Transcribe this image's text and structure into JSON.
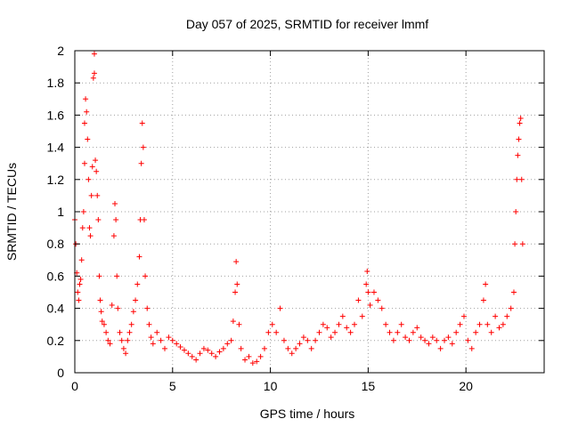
{
  "chart_data": {
    "type": "scatter",
    "title": "Day 057 of 2025, SRMTID for receiver lmmf",
    "xlabel": "GPS time / hours",
    "ylabel": "SRMTID / TECUs",
    "xlim": [
      0,
      24
    ],
    "ylim": [
      0,
      2
    ],
    "grid": true,
    "marker": "+",
    "color": "#ff0000",
    "x_ticks": [
      0,
      5,
      10,
      15,
      20
    ],
    "x_tick_labels": [
      "0",
      "5",
      "10",
      "15",
      "20"
    ],
    "y_ticks": [
      0,
      0.2,
      0.4,
      0.6,
      0.8,
      1,
      1.2,
      1.4,
      1.6,
      1.8,
      2
    ],
    "y_tick_labels": [
      "0",
      "0.2",
      "0.4",
      "0.6",
      "0.8",
      "1",
      "1.2",
      "1.4",
      "1.6",
      "1.8",
      "2"
    ],
    "series": [
      {
        "name": "SRMTID",
        "points": [
          [
            0.0,
            0.95
          ],
          [
            0.05,
            0.8
          ],
          [
            0.1,
            0.62
          ],
          [
            0.15,
            0.5
          ],
          [
            0.2,
            0.45
          ],
          [
            0.25,
            0.55
          ],
          [
            0.3,
            0.58
          ],
          [
            0.35,
            0.7
          ],
          [
            0.4,
            0.9
          ],
          [
            0.45,
            1.0
          ],
          [
            0.5,
            1.3
          ],
          [
            0.5,
            1.55
          ],
          [
            0.55,
            1.7
          ],
          [
            0.6,
            1.62
          ],
          [
            0.65,
            1.45
          ],
          [
            0.7,
            1.2
          ],
          [
            0.75,
            0.9
          ],
          [
            0.8,
            0.85
          ],
          [
            0.85,
            1.1
          ],
          [
            0.9,
            1.28
          ],
          [
            0.95,
            1.83
          ],
          [
            1.0,
            1.98
          ],
          [
            1.0,
            1.86
          ],
          [
            1.05,
            1.32
          ],
          [
            1.1,
            1.25
          ],
          [
            1.15,
            1.1
          ],
          [
            1.2,
            0.95
          ],
          [
            1.25,
            0.6
          ],
          [
            1.3,
            0.45
          ],
          [
            1.35,
            0.38
          ],
          [
            1.4,
            0.32
          ],
          [
            1.5,
            0.3
          ],
          [
            1.6,
            0.25
          ],
          [
            1.7,
            0.2
          ],
          [
            1.8,
            0.18
          ],
          [
            1.9,
            0.42
          ],
          [
            2.0,
            0.85
          ],
          [
            2.05,
            1.05
          ],
          [
            2.1,
            0.95
          ],
          [
            2.15,
            0.6
          ],
          [
            2.2,
            0.4
          ],
          [
            2.3,
            0.25
          ],
          [
            2.4,
            0.2
          ],
          [
            2.5,
            0.15
          ],
          [
            2.6,
            0.12
          ],
          [
            2.7,
            0.2
          ],
          [
            2.8,
            0.25
          ],
          [
            2.9,
            0.3
          ],
          [
            3.0,
            0.38
          ],
          [
            3.1,
            0.45
          ],
          [
            3.2,
            0.55
          ],
          [
            3.3,
            0.72
          ],
          [
            3.35,
            0.95
          ],
          [
            3.4,
            1.3
          ],
          [
            3.45,
            1.55
          ],
          [
            3.5,
            1.4
          ],
          [
            3.55,
            0.95
          ],
          [
            3.6,
            0.6
          ],
          [
            3.7,
            0.4
          ],
          [
            3.8,
            0.3
          ],
          [
            3.9,
            0.22
          ],
          [
            4.0,
            0.18
          ],
          [
            4.2,
            0.25
          ],
          [
            4.4,
            0.2
          ],
          [
            4.6,
            0.15
          ],
          [
            4.8,
            0.22
          ],
          [
            5.0,
            0.2
          ],
          [
            5.2,
            0.18
          ],
          [
            5.4,
            0.16
          ],
          [
            5.6,
            0.14
          ],
          [
            5.8,
            0.12
          ],
          [
            6.0,
            0.1
          ],
          [
            6.2,
            0.08
          ],
          [
            6.4,
            0.12
          ],
          [
            6.6,
            0.15
          ],
          [
            6.8,
            0.14
          ],
          [
            7.0,
            0.12
          ],
          [
            7.2,
            0.1
          ],
          [
            7.4,
            0.13
          ],
          [
            7.6,
            0.15
          ],
          [
            7.8,
            0.18
          ],
          [
            8.0,
            0.2
          ],
          [
            8.1,
            0.32
          ],
          [
            8.2,
            0.5
          ],
          [
            8.25,
            0.69
          ],
          [
            8.3,
            0.55
          ],
          [
            8.4,
            0.3
          ],
          [
            8.5,
            0.15
          ],
          [
            8.7,
            0.08
          ],
          [
            8.9,
            0.1
          ],
          [
            9.1,
            0.06
          ],
          [
            9.3,
            0.07
          ],
          [
            9.5,
            0.1
          ],
          [
            9.7,
            0.15
          ],
          [
            9.9,
            0.25
          ],
          [
            10.1,
            0.3
          ],
          [
            10.3,
            0.25
          ],
          [
            10.5,
            0.4
          ],
          [
            10.7,
            0.2
          ],
          [
            10.9,
            0.15
          ],
          [
            11.1,
            0.12
          ],
          [
            11.3,
            0.15
          ],
          [
            11.5,
            0.18
          ],
          [
            11.7,
            0.22
          ],
          [
            11.9,
            0.2
          ],
          [
            12.1,
            0.15
          ],
          [
            12.3,
            0.2
          ],
          [
            12.5,
            0.25
          ],
          [
            12.7,
            0.3
          ],
          [
            12.9,
            0.28
          ],
          [
            13.1,
            0.22
          ],
          [
            13.3,
            0.25
          ],
          [
            13.5,
            0.3
          ],
          [
            13.7,
            0.35
          ],
          [
            13.9,
            0.28
          ],
          [
            14.1,
            0.25
          ],
          [
            14.3,
            0.3
          ],
          [
            14.5,
            0.45
          ],
          [
            14.7,
            0.35
          ],
          [
            14.9,
            0.55
          ],
          [
            14.95,
            0.63
          ],
          [
            15.0,
            0.5
          ],
          [
            15.1,
            0.42
          ],
          [
            15.3,
            0.5
          ],
          [
            15.5,
            0.45
          ],
          [
            15.7,
            0.4
          ],
          [
            15.9,
            0.3
          ],
          [
            16.1,
            0.25
          ],
          [
            16.3,
            0.2
          ],
          [
            16.5,
            0.25
          ],
          [
            16.7,
            0.3
          ],
          [
            16.9,
            0.22
          ],
          [
            17.1,
            0.2
          ],
          [
            17.3,
            0.25
          ],
          [
            17.5,
            0.28
          ],
          [
            17.7,
            0.22
          ],
          [
            17.9,
            0.2
          ],
          [
            18.1,
            0.18
          ],
          [
            18.3,
            0.22
          ],
          [
            18.5,
            0.2
          ],
          [
            18.7,
            0.15
          ],
          [
            18.9,
            0.2
          ],
          [
            19.1,
            0.22
          ],
          [
            19.3,
            0.18
          ],
          [
            19.5,
            0.25
          ],
          [
            19.7,
            0.3
          ],
          [
            19.9,
            0.35
          ],
          [
            20.1,
            0.2
          ],
          [
            20.3,
            0.15
          ],
          [
            20.5,
            0.25
          ],
          [
            20.7,
            0.3
          ],
          [
            20.9,
            0.45
          ],
          [
            21.0,
            0.55
          ],
          [
            21.1,
            0.3
          ],
          [
            21.3,
            0.25
          ],
          [
            21.5,
            0.35
          ],
          [
            21.7,
            0.28
          ],
          [
            21.9,
            0.3
          ],
          [
            22.1,
            0.35
          ],
          [
            22.3,
            0.4
          ],
          [
            22.45,
            0.5
          ],
          [
            22.5,
            0.8
          ],
          [
            22.55,
            1.0
          ],
          [
            22.6,
            1.2
          ],
          [
            22.65,
            1.35
          ],
          [
            22.7,
            1.45
          ],
          [
            22.75,
            1.55
          ],
          [
            22.8,
            1.58
          ],
          [
            22.85,
            1.2
          ],
          [
            22.9,
            0.8
          ]
        ]
      }
    ]
  }
}
